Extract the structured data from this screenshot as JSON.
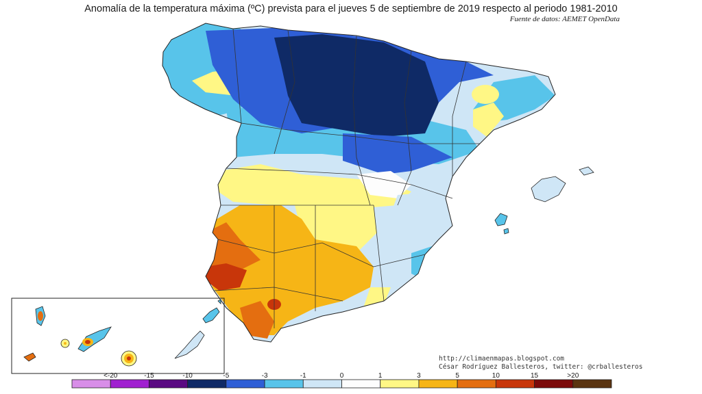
{
  "title": "Anomalía de la temperatura máxima (ºC) prevista para el jueves 5 de septiembre de 2019 respecto al periodo 1981-2010",
  "source": "Fuente de datos: AEMET OpenData",
  "credits": {
    "url": "http://climaenmapas.blogspot.com",
    "author": "César Rodríguez Ballesteros, twitter: @crballesteros"
  },
  "legend": {
    "labels": [
      "<-20",
      "-15",
      "-10",
      "-5",
      "-3",
      "-1",
      "0",
      "1",
      "3",
      "5",
      "10",
      "15",
      ">20"
    ],
    "colors": [
      "#d88ee8",
      "#a020d0",
      "#5a0a82",
      "#0f2a66",
      "#2f5fd6",
      "#58c4ea",
      "#cfe6f6",
      "#fdfdfd",
      "#fff785",
      "#f6b516",
      "#e46e10",
      "#c8360a",
      "#7c0a0a",
      "#5a3410"
    ]
  }
}
